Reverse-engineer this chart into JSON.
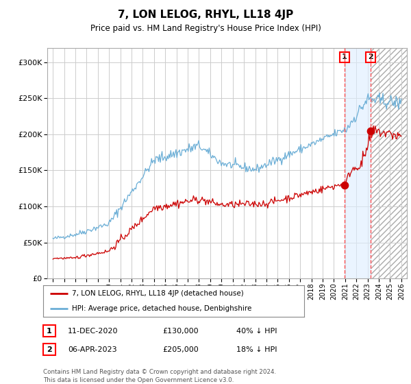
{
  "title": "7, LON LELOG, RHYL, LL18 4JP",
  "subtitle": "Price paid vs. HM Land Registry's House Price Index (HPI)",
  "footer": "Contains HM Land Registry data © Crown copyright and database right 2024.\nThis data is licensed under the Open Government Licence v3.0.",
  "legend_property": "7, LON LELOG, RHYL, LL18 4JP (detached house)",
  "legend_hpi": "HPI: Average price, detached house, Denbighshire",
  "transaction1_date": "11-DEC-2020",
  "transaction1_price": "£130,000",
  "transaction1_hpi": "40% ↓ HPI",
  "transaction1_year": 2020.95,
  "transaction1_value": 130000,
  "transaction2_date": "06-APR-2023",
  "transaction2_price": "£205,000",
  "transaction2_hpi": "18% ↓ HPI",
  "transaction2_year": 2023.27,
  "transaction2_value": 205000,
  "hpi_color": "#6baed6",
  "property_color": "#cc0000",
  "background_color": "#ffffff",
  "grid_color": "#cccccc",
  "highlight_color": "#ddeeff",
  "dashed_line_color": "#ff5555",
  "ylim": [
    0,
    320000
  ],
  "yticks": [
    0,
    50000,
    100000,
    150000,
    200000,
    250000,
    300000
  ],
  "xlim_start": 1994.5,
  "xlim_end": 2026.5,
  "hatch_region_start": 2023.27,
  "shade_region_start": 2020.95,
  "shade_region_end": 2023.27
}
